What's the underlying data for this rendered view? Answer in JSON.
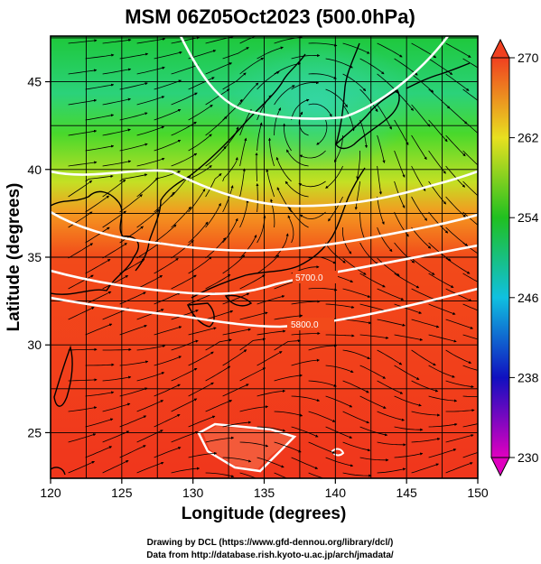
{
  "title": "MSM 06Z05Oct2023 (500.0hPa)",
  "x_axis": {
    "label": "Longitude (degrees)",
    "ticks": [
      "120",
      "125",
      "130",
      "135",
      "140",
      "145",
      "150"
    ],
    "range": [
      120,
      150
    ]
  },
  "y_axis": {
    "label": "Latitude  (degrees)",
    "ticks": [
      "25",
      "30",
      "35",
      "40",
      "45"
    ],
    "range": [
      22.4,
      47.6
    ]
  },
  "colorbar": {
    "ticks": [
      "230",
      "238",
      "246",
      "254",
      "262",
      "270"
    ],
    "range": [
      230,
      270
    ],
    "colors": [
      "#e000c0",
      "#1010c0",
      "#10c0e0",
      "#20c020",
      "#e8e020",
      "#f04020"
    ]
  },
  "contours": {
    "color": "#ffffff",
    "labels": [
      "5700.0",
      "5800.0"
    ]
  },
  "credits": {
    "line1": "Drawing by DCL (https://www.gfd-dennou.org/library/dcl/)",
    "line2": "Data from http://database.rish.kyoto-u.ac.jp/arch/jmadata/"
  }
}
